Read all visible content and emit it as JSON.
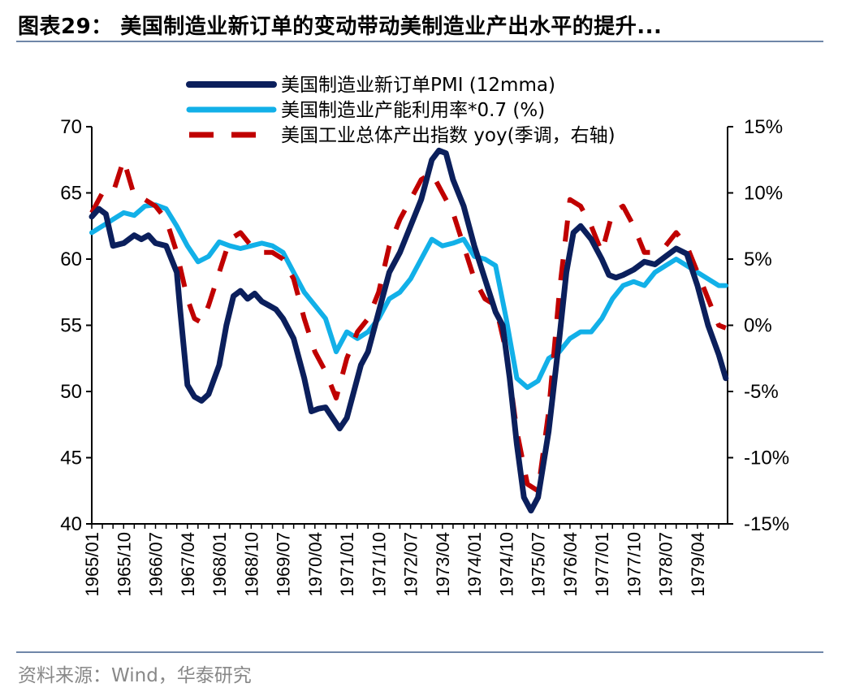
{
  "title": "图表29： 美国制造业新订单的变动带动美制造业产出水平的提升...",
  "source": "资料来源：Wind，华泰研究",
  "colors": {
    "pmi": "#0b1f5c",
    "capacity": "#12b0e8",
    "industry": "#c00000",
    "rule": "#6f86a8"
  },
  "chart_data": {
    "type": "line",
    "x_ticks": [
      "1965/01",
      "1965/10",
      "1966/07",
      "1967/04",
      "1968/01",
      "1968/10",
      "1969/07",
      "1970/04",
      "1971/01",
      "1971/10",
      "1972/07",
      "1973/04",
      "1974/01",
      "1974/10",
      "1975/07",
      "1976/04",
      "1977/01",
      "1977/10",
      "1978/07",
      "1979/04"
    ],
    "y_left": {
      "min": 40,
      "max": 70,
      "ticks": [
        40,
        45,
        50,
        55,
        60,
        65,
        70
      ]
    },
    "y_right": {
      "min": -15,
      "max": 15,
      "ticks": [
        "-15%",
        "-10%",
        "-5%",
        "0%",
        "5%",
        "10%",
        "15%"
      ]
    },
    "legend_position": "top",
    "series": [
      {
        "name": "美国制造业新订单PMI (12mma)",
        "axis": "left",
        "style": "solid",
        "points": [
          [
            "1965/01",
            63.2
          ],
          [
            "1965/03",
            63.8
          ],
          [
            "1965/05",
            63.4
          ],
          [
            "1965/07",
            61.0
          ],
          [
            "1965/10",
            61.2
          ],
          [
            "1966/01",
            61.8
          ],
          [
            "1966/03",
            61.5
          ],
          [
            "1966/05",
            61.8
          ],
          [
            "1966/07",
            61.2
          ],
          [
            "1966/10",
            61.0
          ],
          [
            "1967/01",
            59.0
          ],
          [
            "1967/02",
            56.0
          ],
          [
            "1967/04",
            50.5
          ],
          [
            "1967/06",
            49.6
          ],
          [
            "1967/08",
            49.3
          ],
          [
            "1967/10",
            49.8
          ],
          [
            "1968/01",
            52.0
          ],
          [
            "1968/03",
            55.0
          ],
          [
            "1968/05",
            57.2
          ],
          [
            "1968/07",
            57.6
          ],
          [
            "1968/09",
            57.0
          ],
          [
            "1968/11",
            57.4
          ],
          [
            "1969/01",
            56.8
          ],
          [
            "1969/03",
            56.5
          ],
          [
            "1969/05",
            56.2
          ],
          [
            "1969/07",
            55.5
          ],
          [
            "1969/10",
            54.0
          ],
          [
            "1970/01",
            51.0
          ],
          [
            "1970/03",
            48.5
          ],
          [
            "1970/05",
            48.7
          ],
          [
            "1970/07",
            48.8
          ],
          [
            "1970/09",
            48.0
          ],
          [
            "1970/11",
            47.2
          ],
          [
            "1971/01",
            48.0
          ],
          [
            "1971/03",
            50.0
          ],
          [
            "1971/05",
            52.0
          ],
          [
            "1971/07",
            53.0
          ],
          [
            "1971/10",
            56.0
          ],
          [
            "1972/01",
            59.0
          ],
          [
            "1972/04",
            60.5
          ],
          [
            "1972/07",
            62.5
          ],
          [
            "1972/10",
            64.5
          ],
          [
            "1973/01",
            67.5
          ],
          [
            "1973/03",
            68.2
          ],
          [
            "1973/05",
            68.0
          ],
          [
            "1973/07",
            66.0
          ],
          [
            "1973/10",
            64.0
          ],
          [
            "1974/01",
            61.0
          ],
          [
            "1974/04",
            58.5
          ],
          [
            "1974/07",
            56.0
          ],
          [
            "1974/09",
            55.0
          ],
          [
            "1974/11",
            51.0
          ],
          [
            "1975/01",
            46.0
          ],
          [
            "1975/03",
            42.0
          ],
          [
            "1975/05",
            41.0
          ],
          [
            "1975/07",
            42.0
          ],
          [
            "1975/10",
            47.0
          ],
          [
            "1976/01",
            54.0
          ],
          [
            "1976/03",
            59.0
          ],
          [
            "1976/05",
            62.0
          ],
          [
            "1976/07",
            62.5
          ],
          [
            "1976/10",
            61.5
          ],
          [
            "1977/01",
            60.0
          ],
          [
            "1977/03",
            58.8
          ],
          [
            "1977/05",
            58.6
          ],
          [
            "1977/07",
            58.8
          ],
          [
            "1977/10",
            59.2
          ],
          [
            "1978/01",
            59.8
          ],
          [
            "1978/04",
            59.6
          ],
          [
            "1978/07",
            60.2
          ],
          [
            "1978/10",
            60.8
          ],
          [
            "1979/01",
            60.4
          ],
          [
            "1979/04",
            58.0
          ],
          [
            "1979/07",
            55.0
          ],
          [
            "1979/10",
            52.8
          ],
          [
            "1979/12",
            51.0
          ]
        ]
      },
      {
        "name": "美国制造业产能利用率*0.7 (%)",
        "axis": "left",
        "style": "solid",
        "points": [
          [
            "1965/01",
            62.0
          ],
          [
            "1965/04",
            62.5
          ],
          [
            "1965/07",
            63.0
          ],
          [
            "1965/10",
            63.5
          ],
          [
            "1966/01",
            63.3
          ],
          [
            "1966/04",
            64.0
          ],
          [
            "1966/07",
            64.1
          ],
          [
            "1966/10",
            63.8
          ],
          [
            "1967/01",
            62.5
          ],
          [
            "1967/04",
            61.0
          ],
          [
            "1967/07",
            59.8
          ],
          [
            "1967/10",
            60.2
          ],
          [
            "1968/01",
            61.3
          ],
          [
            "1968/04",
            61.0
          ],
          [
            "1968/07",
            60.8
          ],
          [
            "1968/10",
            61.0
          ],
          [
            "1969/01",
            61.2
          ],
          [
            "1969/04",
            61.0
          ],
          [
            "1969/07",
            60.5
          ],
          [
            "1969/10",
            59.0
          ],
          [
            "1970/01",
            57.5
          ],
          [
            "1970/04",
            56.5
          ],
          [
            "1970/07",
            55.5
          ],
          [
            "1970/10",
            53.0
          ],
          [
            "1971/01",
            54.5
          ],
          [
            "1971/04",
            54.0
          ],
          [
            "1971/07",
            54.5
          ],
          [
            "1971/10",
            55.5
          ],
          [
            "1972/01",
            57.0
          ],
          [
            "1972/04",
            57.5
          ],
          [
            "1972/07",
            58.5
          ],
          [
            "1972/10",
            60.0
          ],
          [
            "1973/01",
            61.5
          ],
          [
            "1973/04",
            61.0
          ],
          [
            "1973/07",
            61.2
          ],
          [
            "1973/10",
            61.5
          ],
          [
            "1974/01",
            60.2
          ],
          [
            "1974/04",
            60.0
          ],
          [
            "1974/07",
            59.5
          ],
          [
            "1974/10",
            55.5
          ],
          [
            "1975/01",
            51.0
          ],
          [
            "1975/04",
            50.3
          ],
          [
            "1975/07",
            50.8
          ],
          [
            "1975/10",
            52.5
          ],
          [
            "1976/01",
            53.0
          ],
          [
            "1976/04",
            54.0
          ],
          [
            "1976/07",
            54.5
          ],
          [
            "1976/10",
            54.5
          ],
          [
            "1977/01",
            55.5
          ],
          [
            "1977/04",
            57.0
          ],
          [
            "1977/07",
            58.0
          ],
          [
            "1977/10",
            58.3
          ],
          [
            "1978/01",
            58.0
          ],
          [
            "1978/04",
            59.0
          ],
          [
            "1978/07",
            59.5
          ],
          [
            "1978/10",
            60.0
          ],
          [
            "1979/01",
            59.5
          ],
          [
            "1979/04",
            59.0
          ],
          [
            "1979/07",
            58.5
          ],
          [
            "1979/10",
            58.0
          ],
          [
            "1979/12",
            58.0
          ]
        ]
      },
      {
        "name": "美国工业总体产出指数 yoy(季调，右轴)",
        "axis": "right",
        "style": "dashed",
        "points": [
          [
            "1965/01",
            8.5
          ],
          [
            "1965/04",
            10.0
          ],
          [
            "1965/07",
            10.0
          ],
          [
            "1965/10",
            12.5
          ],
          [
            "1966/01",
            9.8
          ],
          [
            "1966/04",
            9.5
          ],
          [
            "1966/07",
            9.0
          ],
          [
            "1966/10",
            8.0
          ],
          [
            "1967/01",
            5.5
          ],
          [
            "1967/04",
            2.0
          ],
          [
            "1967/06",
            0.5
          ],
          [
            "1967/08",
            0.2
          ],
          [
            "1967/10",
            1.5
          ],
          [
            "1968/01",
            4.0
          ],
          [
            "1968/04",
            6.5
          ],
          [
            "1968/07",
            7.0
          ],
          [
            "1968/10",
            6.0
          ],
          [
            "1969/01",
            5.5
          ],
          [
            "1969/04",
            5.5
          ],
          [
            "1969/07",
            5.0
          ],
          [
            "1969/10",
            3.5
          ],
          [
            "1970/01",
            0.5
          ],
          [
            "1970/04",
            -2.0
          ],
          [
            "1970/07",
            -3.5
          ],
          [
            "1970/10",
            -5.5
          ],
          [
            "1971/01",
            -2.5
          ],
          [
            "1971/04",
            -0.5
          ],
          [
            "1971/07",
            0.5
          ],
          [
            "1971/10",
            2.5
          ],
          [
            "1972/01",
            6.0
          ],
          [
            "1972/04",
            8.0
          ],
          [
            "1972/07",
            9.5
          ],
          [
            "1972/10",
            11.0
          ],
          [
            "1973/01",
            11.5
          ],
          [
            "1973/04",
            10.0
          ],
          [
            "1973/07",
            8.5
          ],
          [
            "1973/10",
            6.0
          ],
          [
            "1974/01",
            3.5
          ],
          [
            "1974/04",
            2.0
          ],
          [
            "1974/07",
            1.5
          ],
          [
            "1974/10",
            -2.0
          ],
          [
            "1975/01",
            -8.0
          ],
          [
            "1975/04",
            -12.0
          ],
          [
            "1975/07",
            -12.5
          ],
          [
            "1975/10",
            -6.5
          ],
          [
            "1976/01",
            2.5
          ],
          [
            "1976/04",
            9.5
          ],
          [
            "1976/07",
            9.0
          ],
          [
            "1976/10",
            7.5
          ],
          [
            "1977/01",
            5.5
          ],
          [
            "1977/04",
            8.5
          ],
          [
            "1977/07",
            9.0
          ],
          [
            "1977/10",
            7.5
          ],
          [
            "1978/01",
            5.5
          ],
          [
            "1978/04",
            5.5
          ],
          [
            "1978/07",
            6.0
          ],
          [
            "1978/10",
            7.0
          ],
          [
            "1979/01",
            6.0
          ],
          [
            "1979/04",
            4.0
          ],
          [
            "1979/07",
            2.0
          ],
          [
            "1979/10",
            0.0
          ],
          [
            "1979/12",
            -0.2
          ]
        ]
      }
    ]
  }
}
